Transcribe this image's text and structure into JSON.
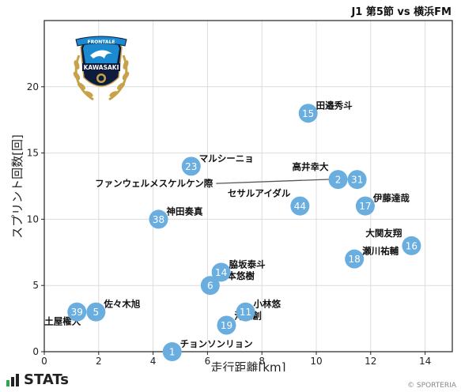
{
  "header": {
    "match": "J1 第5節 vs 横浜FM"
  },
  "footer": {
    "brand": "STATs",
    "copyright": "© SPORTERIA"
  },
  "emblem": {
    "top_text": "FRONTALE",
    "main_text": "KAWASAKI",
    "colors": {
      "blue": "#1b8ad0",
      "gold": "#c8a24a",
      "navy": "#0d1b3d"
    }
  },
  "colors": {
    "marker": "#6aaee0",
    "marker_text": "#ffffff",
    "grid": "#dcdcdc",
    "axis": "#222222",
    "leader": "#555555"
  },
  "chart_data": {
    "type": "scatter",
    "xlabel": "走行距離[km]",
    "ylabel": "スプリント回数[回]",
    "xlim": [
      0,
      15
    ],
    "ylim": [
      0,
      25
    ],
    "xticks": [
      0,
      2,
      4,
      6,
      8,
      10,
      12,
      14
    ],
    "yticks": [
      0,
      5,
      10,
      15,
      20
    ],
    "grid": true,
    "points": [
      {
        "number": "15",
        "name": "田邉秀斗",
        "x": 9.7,
        "y": 18,
        "label_pos": "right"
      },
      {
        "number": "23",
        "name": "マルシーニョ",
        "x": 5.4,
        "y": 14,
        "label_pos": "right"
      },
      {
        "number": "2",
        "name": "高井幸大",
        "x": 10.8,
        "y": 13,
        "label_pos": "left-up"
      },
      {
        "number": "31",
        "name": "ファンウェルメスケルケン際",
        "x": 11.5,
        "y": 13,
        "label_pos": "leader"
      },
      {
        "number": "44",
        "name": "セサルアイダル",
        "x": 9.4,
        "y": 11,
        "label_pos": "left-up"
      },
      {
        "number": "17",
        "name": "伊藤達哉",
        "x": 11.8,
        "y": 11,
        "label_pos": "right"
      },
      {
        "number": "38",
        "name": "神田奏真",
        "x": 4.2,
        "y": 10,
        "label_pos": "right"
      },
      {
        "number": "16",
        "name": "大関友翔",
        "x": 13.5,
        "y": 8,
        "label_pos": "left-up"
      },
      {
        "number": "18",
        "name": "瀬川祐輔",
        "x": 11.4,
        "y": 7,
        "label_pos": "right"
      },
      {
        "number": "14",
        "name": "脇坂泰斗",
        "x": 6.5,
        "y": 6,
        "label_pos": "right"
      },
      {
        "number": "6",
        "name": "山本悠樹",
        "x": 6.1,
        "y": 5,
        "label_pos": "right-up"
      },
      {
        "number": "39",
        "name": "土屋櫂大",
        "x": 1.2,
        "y": 3,
        "label_pos": "below"
      },
      {
        "number": "5",
        "name": "佐々木旭",
        "x": 1.9,
        "y": 3,
        "label_pos": "right"
      },
      {
        "number": "11",
        "name": "小林悠",
        "x": 7.4,
        "y": 3,
        "label_pos": "right"
      },
      {
        "number": "19",
        "name": "河原創",
        "x": 6.7,
        "y": 2,
        "label_pos": "right-up"
      },
      {
        "number": "1",
        "name": "チョンソンリョン",
        "x": 4.7,
        "y": 0,
        "label_pos": "right"
      }
    ]
  }
}
